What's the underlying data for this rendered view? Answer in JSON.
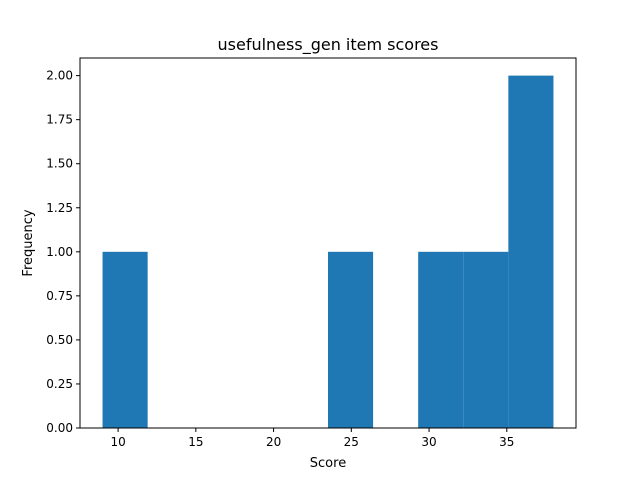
{
  "chart_data": {
    "type": "bar",
    "title": "usefulness_gen item scores",
    "xlabel": "Score",
    "ylabel": "Frequency",
    "xlim": [
      7.55,
      39.45
    ],
    "ylim": [
      0,
      2.1
    ],
    "xticks": [
      10,
      15,
      20,
      25,
      30,
      35
    ],
    "xtick_labels": [
      "10",
      "15",
      "20",
      "25",
      "30",
      "35"
    ],
    "yticks": [
      0,
      0.25,
      0.5,
      0.75,
      1.0,
      1.25,
      1.5,
      1.75,
      2.0
    ],
    "ytick_labels": [
      "0.00",
      "0.25",
      "0.50",
      "0.75",
      "1.00",
      "1.25",
      "1.50",
      "1.75",
      "2.00"
    ],
    "bin_edges": [
      9,
      11.9,
      14.8,
      17.7,
      20.6,
      23.5,
      26.4,
      29.3,
      32.2,
      35.1,
      38
    ],
    "counts": [
      1,
      0,
      0,
      0,
      0,
      1,
      0,
      1,
      1,
      2
    ],
    "bar_color": "#1f77b4",
    "grid": false
  }
}
